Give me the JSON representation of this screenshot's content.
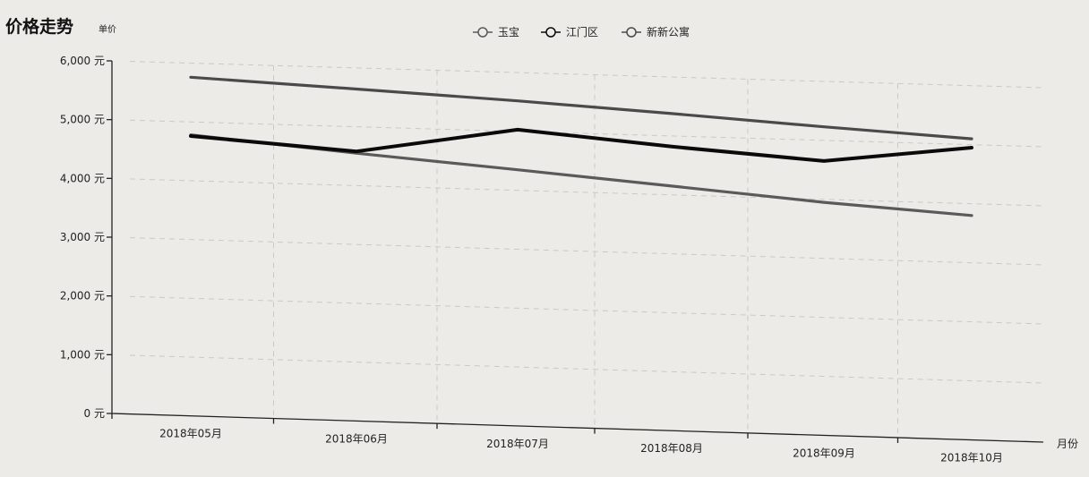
{
  "chart_data": {
    "type": "line",
    "title": "价格走势",
    "unit_label": "单价",
    "xlabel": "月份",
    "categories": [
      "2018年05月",
      "2018年06月",
      "2018年07月",
      "2018年08月",
      "2018年09月",
      "2018年10月"
    ],
    "ylim": [
      0,
      6000
    ],
    "y_ticks": [
      0,
      1000,
      2000,
      3000,
      4000,
      5000,
      6000
    ],
    "y_tick_labels": [
      "0 元",
      "1,000 元",
      "2,000 元",
      "3,000 元",
      "4,000 元",
      "5,000 元",
      "6,000 元"
    ],
    "legend_position": "top-center",
    "grid": true,
    "series": [
      {
        "name": "玉宝",
        "color": "#5a5a5a",
        "values": [
          4780,
          4550,
          4350,
          4150,
          3950,
          3800
        ]
      },
      {
        "name": "江门区",
        "color": "#0a0a0a",
        "values": [
          4760,
          4580,
          5030,
          4820,
          4650,
          4950
        ]
      },
      {
        "name": "新新公寓",
        "color": "#4a4a4a",
        "values": [
          5760,
          5640,
          5520,
          5380,
          5230,
          5100
        ]
      }
    ]
  }
}
